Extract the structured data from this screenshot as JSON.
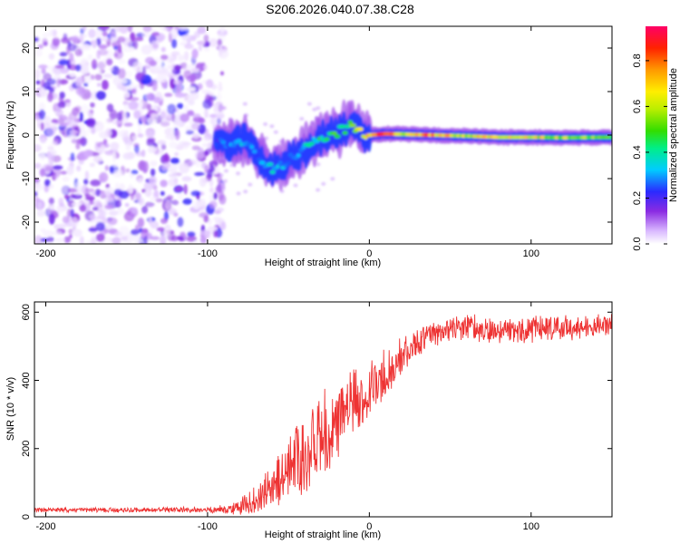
{
  "figure_title": "S206.2026.040.07.38.C28",
  "chart_data": [
    {
      "type": "heatmap",
      "title": "",
      "xlabel": "Height of straight line (km)",
      "ylabel": "Frequency (Hz)",
      "xlim": [
        -207,
        150
      ],
      "ylim": [
        -25,
        25
      ],
      "xticks": [
        -200,
        -100,
        0,
        100
      ],
      "yticks": [
        -20,
        -10,
        0,
        10,
        20
      ],
      "description_series": [
        {
          "name": "noise region",
          "x_range": [
            -207,
            -90
          ],
          "freq_range": [
            -25,
            25
          ],
          "amplitude": 0.05
        },
        {
          "name": "signal ridge",
          "x": [
            -95,
            -85,
            -78,
            -72,
            -66,
            -60,
            -54,
            -48,
            -42,
            -36,
            -30,
            -24,
            -18,
            -12,
            -6,
            0,
            10,
            20,
            40,
            60,
            80,
            100,
            120,
            150
          ],
          "freq": [
            -1.5,
            -2,
            -1,
            -3,
            -6,
            -8,
            -7,
            -5,
            -4,
            -2,
            -1,
            0,
            1,
            2,
            1,
            0,
            0.3,
            0.2,
            0,
            -0.2,
            -0.5,
            -0.5,
            -0.6,
            -0.5
          ],
          "amplitude": [
            0.25,
            0.3,
            0.35,
            0.3,
            0.3,
            0.35,
            0.35,
            0.3,
            0.35,
            0.4,
            0.45,
            0.5,
            0.5,
            0.55,
            0.6,
            0.7,
            0.85,
            0.7,
            0.8,
            0.65,
            0.7,
            0.7,
            0.6,
            0.55
          ]
        }
      ],
      "colorbar": {
        "label": "Normalized spectral amplitude",
        "range": [
          0.0,
          0.95
        ],
        "ticks": [
          "0.0",
          "0.2",
          "0.4",
          "0.6",
          "0.8"
        ]
      }
    },
    {
      "type": "line",
      "title": "",
      "xlabel": "Height of straight line (km)",
      "ylabel": "SNR (10 * v/v)",
      "xlim": [
        -207,
        150
      ],
      "ylim": [
        0,
        630
      ],
      "xticks": [
        -200,
        -100,
        0,
        100
      ],
      "yticks": [
        0,
        200,
        400,
        600
      ],
      "color": "#ee3333",
      "envelope": {
        "x": [
          -207,
          -150,
          -100,
          -90,
          -80,
          -70,
          -60,
          -50,
          -40,
          -30,
          -20,
          -10,
          0,
          10,
          20,
          30,
          40,
          50,
          60,
          80,
          100,
          120,
          150
        ],
        "mean": [
          20,
          20,
          20,
          22,
          30,
          55,
          100,
          150,
          200,
          250,
          290,
          330,
          380,
          420,
          470,
          510,
          540,
          550,
          555,
          545,
          550,
          555,
          560
        ],
        "spread": [
          8,
          8,
          10,
          15,
          25,
          45,
          70,
          110,
          130,
          140,
          130,
          120,
          100,
          80,
          60,
          50,
          45,
          45,
          45,
          45,
          45,
          45,
          40
        ]
      }
    }
  ]
}
